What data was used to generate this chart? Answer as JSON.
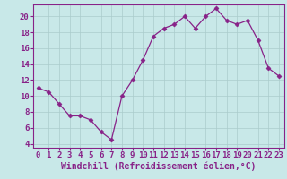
{
  "x": [
    0,
    1,
    2,
    3,
    4,
    5,
    6,
    7,
    8,
    9,
    10,
    11,
    12,
    13,
    14,
    15,
    16,
    17,
    18,
    19,
    20,
    21,
    22,
    23
  ],
  "y": [
    11,
    10.5,
    9,
    7.5,
    7.5,
    7,
    5.5,
    4.5,
    10,
    12,
    14.5,
    17.5,
    18.5,
    19,
    20,
    18.5,
    20,
    21,
    19.5,
    19,
    19.5,
    17,
    13.5,
    12.5
  ],
  "line_color": "#882288",
  "marker": "D",
  "markersize": 2.5,
  "linewidth": 0.9,
  "background_color": "#c8e8e8",
  "grid_color": "#aacccc",
  "xlabel": "Windchill (Refroidissement éolien,°C)",
  "xlabel_fontsize": 7,
  "xlabel_color": "#882288",
  "tick_color": "#882288",
  "tick_fontsize": 6.5,
  "xlim": [
    -0.5,
    23.5
  ],
  "ylim": [
    3.5,
    21.5
  ],
  "yticks": [
    4,
    6,
    8,
    10,
    12,
    14,
    16,
    18,
    20
  ],
  "xticks": [
    0,
    1,
    2,
    3,
    4,
    5,
    6,
    7,
    8,
    9,
    10,
    11,
    12,
    13,
    14,
    15,
    16,
    17,
    18,
    19,
    20,
    21,
    22,
    23
  ],
  "spine_color": "#882288"
}
